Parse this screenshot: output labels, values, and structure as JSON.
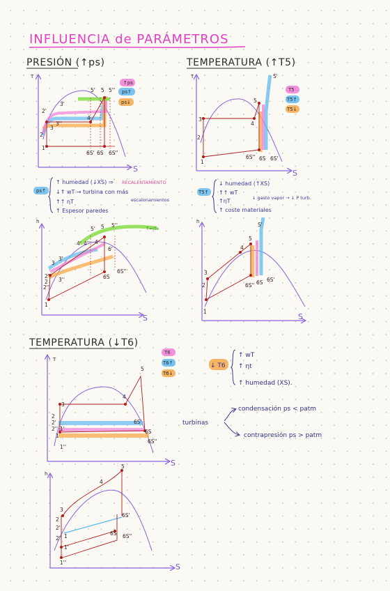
{
  "title": "INFLUENCIA de PARÁMETROS",
  "sections": {
    "presion": {
      "heading": "PRESIÓN (↑ps)",
      "legend": [
        "↑ps",
        "ps↑",
        "ps↓"
      ],
      "ts_axes": {
        "y": "T",
        "x": "S"
      },
      "hs_axes": {
        "y": "h",
        "x": "S"
      },
      "ts_points": [
        "5'",
        "5",
        "5''",
        "3'",
        "2'",
        "3",
        "3''",
        "4",
        "1",
        "2",
        "6S'",
        "6S",
        "6S''"
      ],
      "hs_points": [
        "5'",
        "5",
        "5''",
        "4'",
        "4",
        "4''",
        "6'",
        "3",
        "2'",
        "2",
        "2''",
        "1",
        "6S",
        "6S''",
        "3'",
        "3''"
      ],
      "tag": "ps↑",
      "notes": [
        "↑ humedad (↓XS) ⇒",
        "RECALENTAMIENTO",
        "↓↑ wT → turbina con más",
        "escalonamientos",
        "↑↑ ηT",
        "↑ Espesor paredes"
      ],
      "curve_label": "T=cte"
    },
    "temperatura1": {
      "heading": "TEMPERATURA (↑T5)",
      "legend": [
        "T5",
        "T5↑",
        "T5↓"
      ],
      "ts_axes": {
        "y": "T",
        "x": "S"
      },
      "hs_axes": {
        "y": "h",
        "x": "S"
      },
      "ts_points": [
        "S'",
        "5",
        "4",
        "3",
        "2",
        "1",
        "6S''",
        "6S",
        "6S'"
      ],
      "hs_points": [
        "S'",
        "5",
        "4",
        "3",
        "2",
        "1",
        "6S''",
        "6S",
        "6S'"
      ],
      "tag": "T5↑",
      "notes": [
        "↓ humedad (↑XS)",
        "↑↑ wT",
        "↑ηT",
        "↓ gasto vapor → ↓ P turb.",
        "↑ coste materiales"
      ]
    },
    "temperatura2": {
      "heading": "TEMPERATURA (↓T6)",
      "legend": [
        "T6",
        "T6↑",
        "T6↓"
      ],
      "ts_axes": {
        "y": "T",
        "x": "S"
      },
      "hs_axes": {
        "y": "h",
        "x": "S"
      },
      "ts_points": [
        "5",
        "4",
        "3",
        "2",
        "2'",
        "2''",
        "1",
        "1'",
        "1''",
        "6S",
        "6S'",
        "6S''"
      ],
      "hs_points": [
        "5",
        "4",
        "3",
        "2",
        "2'",
        "2''",
        "1",
        "1'",
        "1''",
        "6S",
        "6S'",
        "6S''"
      ],
      "tag": "↓ T6",
      "notes": [
        "↑ wT",
        "↑ ηt",
        "↑ humedad (XS)."
      ],
      "turbinas": {
        "label": "turbinas",
        "items": [
          "condensación  ps < patm",
          "contrapresión  ps > patm"
        ]
      }
    }
  }
}
